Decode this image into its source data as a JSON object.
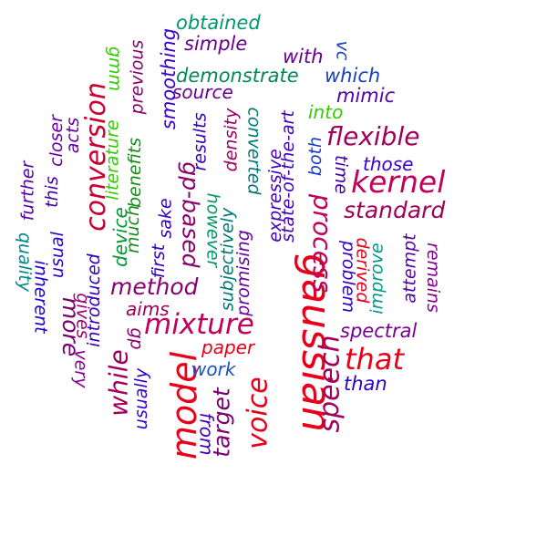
{
  "words": [
    {
      "text": "gaussian",
      "color": "#e8001a"
    },
    {
      "text": "model",
      "color": "#e8001a"
    },
    {
      "text": "mixture",
      "color": "#c0005a"
    },
    {
      "text": "voice",
      "color": "#e8001a"
    },
    {
      "text": "kernel",
      "color": "#c0005a"
    },
    {
      "text": "speech",
      "color": "#a0005a"
    },
    {
      "text": "conversion",
      "color": "#cc0030"
    },
    {
      "text": "process",
      "color": "#c0005a"
    },
    {
      "text": "that",
      "color": "#e8001a"
    },
    {
      "text": "flexible",
      "color": "#a0005a"
    },
    {
      "text": "standard",
      "color": "#a0005a"
    },
    {
      "text": "method",
      "color": "#880070"
    },
    {
      "text": "gp-based",
      "color": "#8a0070"
    },
    {
      "text": "while",
      "color": "#a0005a"
    },
    {
      "text": "more",
      "color": "#7a0070"
    },
    {
      "text": "target",
      "color": "#7a0070"
    },
    {
      "text": "gmm",
      "color": "#33cc00"
    },
    {
      "text": "literature",
      "color": "#33cc00"
    },
    {
      "text": "into",
      "color": "#33cc00"
    },
    {
      "text": "device",
      "color": "#009933"
    },
    {
      "text": "obtained",
      "color": "#009966"
    },
    {
      "text": "demonstrate",
      "color": "#008855"
    },
    {
      "text": "however",
      "color": "#009966"
    },
    {
      "text": "quality",
      "color": "#008888"
    },
    {
      "text": "improve",
      "color": "#009988"
    },
    {
      "text": "converted",
      "color": "#007777"
    },
    {
      "text": "subjectively",
      "color": "#007777"
    },
    {
      "text": "previous",
      "color": "#880070"
    },
    {
      "text": "much",
      "color": "#1a8a1a"
    },
    {
      "text": "benefits",
      "color": "#1a8a1a"
    },
    {
      "text": "simple",
      "color": "#6a0090"
    },
    {
      "text": "with",
      "color": "#6a0090"
    },
    {
      "text": "source",
      "color": "#6a0090"
    },
    {
      "text": "mimic",
      "color": "#5500aa"
    },
    {
      "text": "those",
      "color": "#3a00cc"
    },
    {
      "text": "which",
      "color": "#1a40c0"
    },
    {
      "text": "vc",
      "color": "#1a40c0"
    },
    {
      "text": "smoothing",
      "color": "#3a00cc"
    },
    {
      "text": "results",
      "color": "#3300bb"
    },
    {
      "text": "density",
      "color": "#990066"
    },
    {
      "text": "promising",
      "color": "#6a00a0"
    },
    {
      "text": "expressive",
      "color": "#4400bb"
    },
    {
      "text": "state-of-the-art",
      "color": "#4400bb"
    },
    {
      "text": "both",
      "color": "#1a40c0"
    },
    {
      "text": "time",
      "color": "#4400aa"
    },
    {
      "text": "derived",
      "color": "#e8001a"
    },
    {
      "text": "problem",
      "color": "#3300cc"
    },
    {
      "text": "attempt",
      "color": "#5500aa"
    },
    {
      "text": "remains",
      "color": "#8a0090"
    },
    {
      "text": "spectral",
      "color": "#7a0090"
    },
    {
      "text": "than",
      "color": "#2a00cc"
    },
    {
      "text": "paper",
      "color": "#e8001a"
    },
    {
      "text": "work",
      "color": "#1a50c0"
    },
    {
      "text": "from",
      "color": "#3a00cc"
    },
    {
      "text": "usually",
      "color": "#3300cc"
    },
    {
      "text": "gp",
      "color": "#880070"
    },
    {
      "text": "aims",
      "color": "#a0005a"
    },
    {
      "text": "first",
      "color": "#3300bb"
    },
    {
      "text": "sake",
      "color": "#3300bb"
    },
    {
      "text": "introduced",
      "color": "#3300bb"
    },
    {
      "text": "very",
      "color": "#880090"
    },
    {
      "text": "gives",
      "color": "#a00070"
    },
    {
      "text": "inherent",
      "color": "#2200cc"
    },
    {
      "text": "usual",
      "color": "#2a00cc"
    },
    {
      "text": "further",
      "color": "#5500aa"
    },
    {
      "text": "this",
      "color": "#4400aa"
    },
    {
      "text": "closer",
      "color": "#6600aa"
    },
    {
      "text": "acts",
      "color": "#6600aa"
    }
  ]
}
